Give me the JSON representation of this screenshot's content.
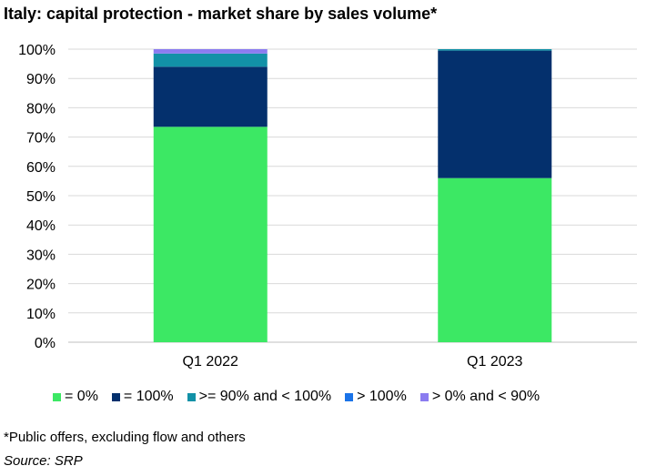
{
  "title": "Italy: capital protection - market share by sales volume*",
  "footnote": "*Public offers, excluding flow and others",
  "source": "Source: SRP",
  "chart_data": {
    "type": "bar",
    "stacked": true,
    "categories": [
      "Q1 2022",
      "Q1 2023"
    ],
    "series": [
      {
        "name": "= 0%",
        "color": "#3ce864",
        "values": [
          73.5,
          56
        ]
      },
      {
        "name": "= 100%",
        "color": "#04306d",
        "values": [
          20.5,
          43.5
        ]
      },
      {
        "name": ">= 90% and < 100%",
        "color": "#1291a7",
        "values": [
          4.5,
          0.5
        ]
      },
      {
        "name": "> 100%",
        "color": "#1a73e8",
        "values": [
          0,
          0
        ]
      },
      {
        "name": "> 0% and < 90%",
        "color": "#8b7cf0",
        "values": [
          1.5,
          0
        ]
      }
    ],
    "ylim": [
      0,
      100
    ],
    "yticks": [
      "0%",
      "10%",
      "20%",
      "30%",
      "40%",
      "50%",
      "60%",
      "70%",
      "80%",
      "90%",
      "100%"
    ],
    "grid": true,
    "legend_position": "bottom"
  }
}
